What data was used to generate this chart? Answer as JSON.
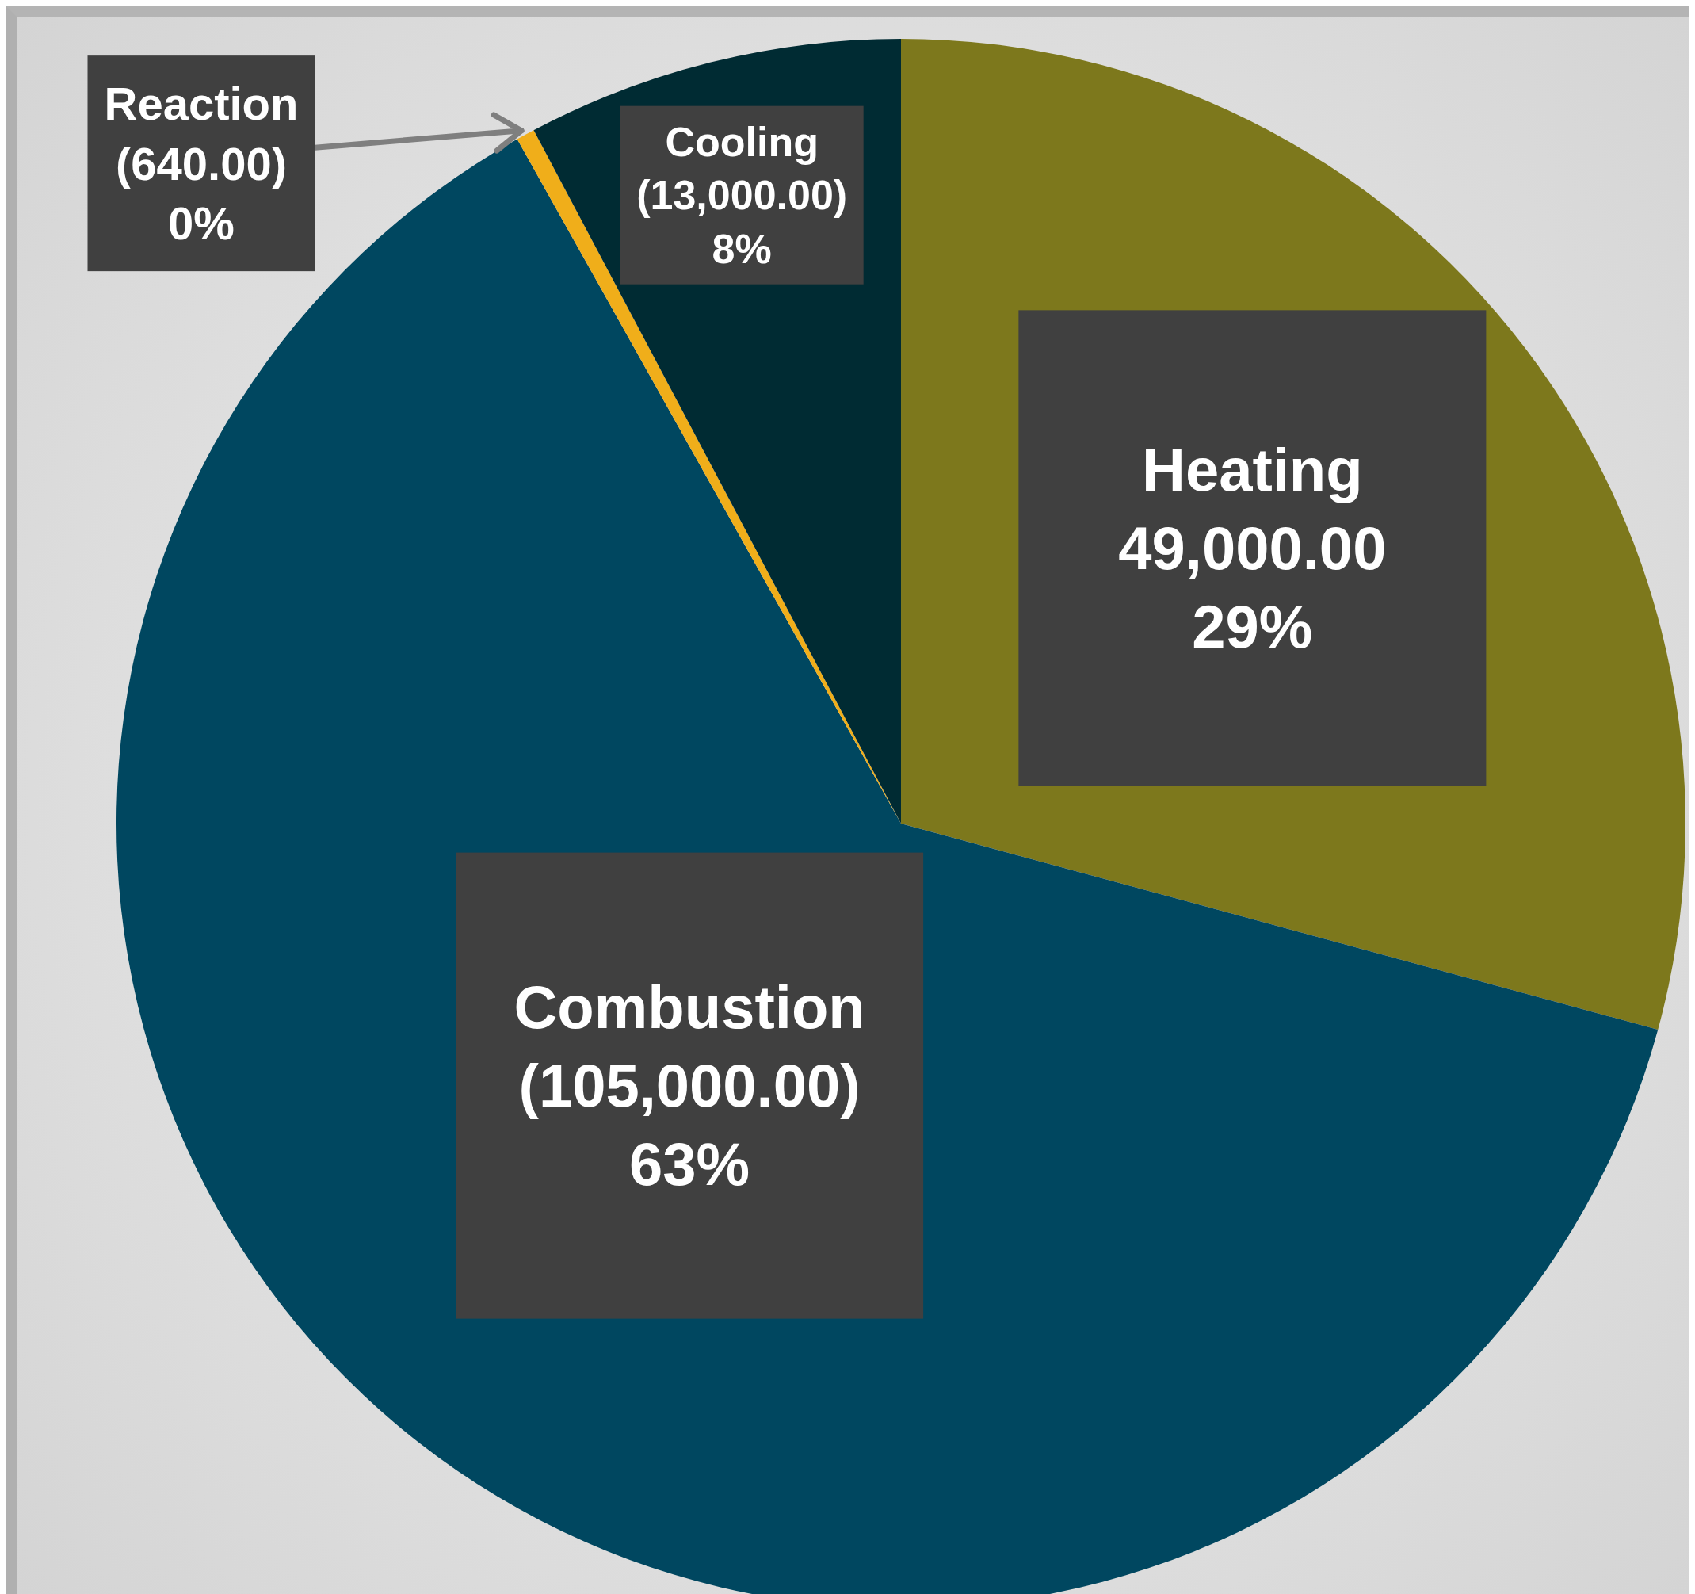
{
  "chart_data": {
    "type": "pie",
    "categories": [
      "Heating",
      "Combustion",
      "Reaction",
      "Cooling"
    ],
    "values": [
      49000,
      105000,
      640,
      13000
    ],
    "colors": [
      "#7d781c",
      "#004760",
      "#f0ae1a",
      "#002b33"
    ],
    "value_labels": [
      "49,000.00\n29%",
      "(105,000.00)\n63%",
      "(640.00)\n0%",
      "(13,000.00)\n8%"
    ],
    "legend": false
  }
}
